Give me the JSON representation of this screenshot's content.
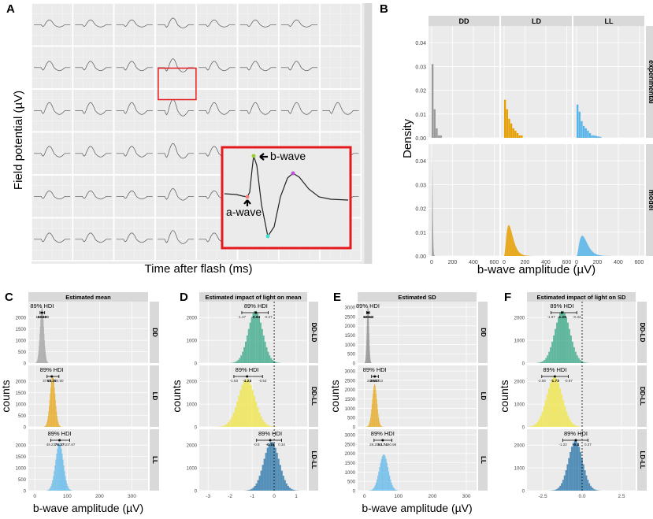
{
  "colors": {
    "gray": "#999999",
    "orange": "#E69F00",
    "blue": "#56B4E9",
    "green": "#33A583",
    "yellow": "#F0E442",
    "darkblue": "#1F6FA5",
    "panel": "#EBEBEB",
    "strip": "#D9D9D9",
    "red": "#E41A1C"
  },
  "panel_letters": [
    "A",
    "B",
    "C",
    "D",
    "E",
    "F"
  ],
  "panelA": {
    "ylabel": "Field potential (µV)",
    "xlabel": "Time after flash (ms)",
    "inset": {
      "b_wave": "b-wave",
      "a_wave": "a-wave"
    }
  },
  "chart_data": [
    {
      "id": "B",
      "type": "histogram",
      "ylabel": "Density",
      "xlabel": "b-wave amplitude (µV)",
      "columns": [
        "DD",
        "LD",
        "LL"
      ],
      "rows": [
        "experimental",
        "model"
      ],
      "x_ticks": [
        0,
        200,
        400,
        600
      ],
      "xlim": [
        -30,
        650
      ],
      "y_ticks": [
        0.0,
        0.01,
        0.02,
        0.03,
        0.04
      ],
      "y_tick_labels": [
        "0.00",
        "0.01",
        "0.02",
        "0.03",
        "0.04"
      ],
      "ylim": [
        0,
        0.047
      ],
      "experimental_bins": {
        "bin_width": 20,
        "DD": [
          0.031,
          0.012,
          0.004,
          0.001,
          0.001
        ],
        "LD": [
          0.016,
          0.012,
          0.008,
          0.006,
          0.004,
          0.003,
          0.002,
          0.001,
          0.001
        ],
        "LL": [
          0.014,
          0.011,
          0.007,
          0.005,
          0.004,
          0.003,
          0.002,
          0.001,
          0.001,
          0.0008,
          0.0006,
          0.0004
        ]
      },
      "model_mode": {
        "DD": {
          "mode": 5,
          "peak": 0.045
        },
        "LD": {
          "mode": 45,
          "peak": 0.013
        },
        "LL": {
          "mode": 55,
          "peak": 0.0085
        }
      }
    },
    {
      "id": "C",
      "type": "histogram",
      "title": "Estimated mean",
      "rows": [
        "DD",
        "LD",
        "LL"
      ],
      "xlabel": "b-wave amplitude (µV)",
      "ylabel": "counts",
      "x_ticks": [
        0,
        100,
        200,
        300
      ],
      "xlim": [
        -20,
        350
      ],
      "y_ticks": [
        0,
        500,
        1000,
        1500,
        2000
      ],
      "ylim": [
        0,
        2700
      ],
      "dists": [
        {
          "center": 22,
          "sd": 6,
          "peak": 2450
        },
        {
          "center": 55,
          "sd": 8,
          "peak": 2250
        },
        {
          "center": 76,
          "sd": 12,
          "peak": 2100
        }
      ],
      "hdi": [
        {
          "label": "89% HDI",
          "lo": "16.19",
          "mid": "22.28",
          "hi": "30.36",
          "lo_v": 16.19,
          "mid_v": 22.28,
          "hi_v": 30.36
        },
        {
          "label": "89% HDI",
          "lo": "37.76",
          "mid": "52.28",
          "hi": "74.50",
          "lo_v": 37.76,
          "mid_v": 52.28,
          "hi_v": 74.5
        },
        {
          "label": "89% HDI",
          "lo": "49.23",
          "mid": "76.37",
          "hi": "107.67",
          "lo_v": 49.23,
          "mid_v": 76.37,
          "hi_v": 107.67
        }
      ]
    },
    {
      "id": "D",
      "type": "histogram",
      "title": "Estimated impact of light on mean",
      "rows": [
        "DD-LD",
        "DD-LL",
        "LD-LL"
      ],
      "xlabel": "",
      "ylabel": "counts",
      "x_ticks": [
        -3,
        -2,
        -1,
        0,
        1
      ],
      "xlim": [
        -3.4,
        1.5
      ],
      "y_ticks": [
        0,
        1000,
        2000
      ],
      "ylim": [
        0,
        2700
      ],
      "refline": 0,
      "dists": [
        {
          "center": -0.85,
          "sd": 0.33,
          "peak": 2300
        },
        {
          "center": -1.25,
          "sd": 0.38,
          "peak": 2100
        },
        {
          "center": -0.12,
          "sd": 0.35,
          "peak": 2150
        }
      ],
      "hdi": [
        {
          "label": "89% HDI",
          "lo": "-1.47",
          "mid": "-0.83",
          "hi": "-0.27",
          "lo_v": -1.47,
          "mid_v": -0.83,
          "hi_v": -0.27
        },
        {
          "label": "89% HDI",
          "lo": "-1.83",
          "mid": "-1.23",
          "hi": "-0.53",
          "lo_v": -1.83,
          "mid_v": -1.23,
          "hi_v": -0.53
        },
        {
          "label": "89% HDI",
          "lo": "-0.8",
          "mid": "-0.18",
          "hi": "0.34",
          "lo_v": -0.8,
          "mid_v": -0.18,
          "hi_v": 0.34
        }
      ]
    },
    {
      "id": "E",
      "type": "histogram",
      "title": "Estimated SD",
      "rows": [
        "DD",
        "LD",
        "LL"
      ],
      "xlabel": "b-wave amplitude (µV)",
      "ylabel": "counts",
      "x_ticks": [
        0,
        100,
        200,
        300
      ],
      "xlim": [
        -20,
        330
      ],
      "y_ticks": [
        0,
        500,
        1000,
        1500,
        2000,
        2500,
        3000
      ],
      "ylim": [
        0,
        3300
      ],
      "dists": [
        {
          "center": 10,
          "sd": 3,
          "peak": 3050
        },
        {
          "center": 30,
          "sd": 7,
          "peak": 2300
        },
        {
          "center": 57,
          "sd": 13,
          "peak": 1950
        }
      ],
      "hdi": [
        {
          "label": "89% HDI",
          "lo": "6.78",
          "mid": "10.14",
          "hi": "14.89",
          "lo_v": 6.78,
          "mid_v": 10.14,
          "hi_v": 14.89
        },
        {
          "label": "89% HDI",
          "lo": "20.99",
          "mid": "30.37",
          "hi": "41.13",
          "lo_v": 20.99,
          "mid_v": 30.37,
          "hi_v": 41.13
        },
        {
          "label": "89% HDI",
          "lo": "28.20",
          "mid": "53.74",
          "hi": "80.98",
          "lo_v": 28.2,
          "mid_v": 53.74,
          "hi_v": 80.98
        }
      ]
    },
    {
      "id": "F",
      "type": "histogram",
      "title": "Estimated impact of light on SD",
      "rows": [
        "DD-LD",
        "DD-LL",
        "LD-LL"
      ],
      "xlabel": "",
      "ylabel": "counts",
      "x_ticks": [
        -2.5,
        0,
        2.5
      ],
      "x_tick_labels": [
        "-2.5",
        "0.0",
        "2.5"
      ],
      "xlim": [
        -3.5,
        3.4
      ],
      "y_ticks": [
        0,
        1000,
        2000
      ],
      "ylim": [
        0,
        2700
      ],
      "refline": 0,
      "dists": [
        {
          "center": -1.25,
          "sd": 0.48,
          "peak": 2300
        },
        {
          "center": -1.75,
          "sd": 0.5,
          "peak": 2200
        },
        {
          "center": -0.42,
          "sd": 0.45,
          "peak": 2200
        }
      ],
      "hdi": [
        {
          "label": "89% HDI",
          "lo": "-1.97",
          "mid": "-1.28",
          "hi": "-0.34",
          "lo_v": -1.97,
          "mid_v": -1.28,
          "hi_v": -0.34
        },
        {
          "label": "89% HDI",
          "lo": "-2.56",
          "mid": "-1.73",
          "hi": "-0.87",
          "lo_v": -2.56,
          "mid_v": -1.73,
          "hi_v": -0.87
        },
        {
          "label": "89% HDI",
          "lo": "-1.22",
          "mid": "-0.4",
          "hi": "0.37",
          "lo_v": -1.22,
          "mid_v": -0.4,
          "hi_v": 0.37
        }
      ]
    }
  ]
}
